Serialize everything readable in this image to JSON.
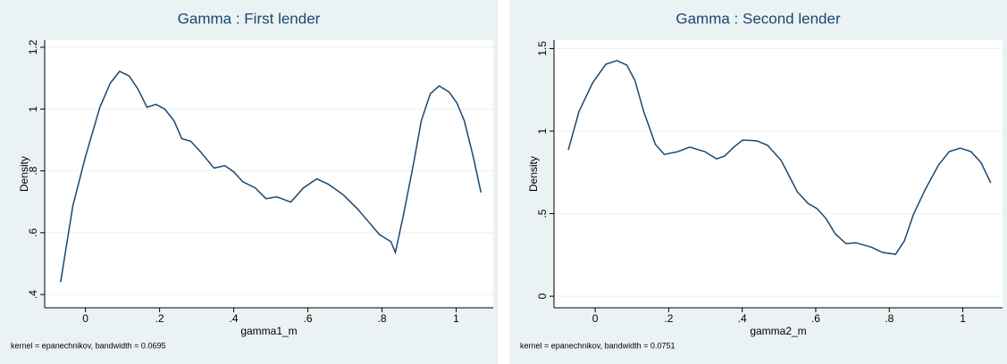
{
  "chart_data": [
    {
      "type": "line",
      "title": "Gamma : First lender",
      "x_label": "gamma1_m",
      "y_label": "Density",
      "note": "kernel = epanechnikov, bandwidth = 0.0695",
      "color": "#1a476f",
      "grid": true,
      "xlim": [
        -0.11,
        1.1
      ],
      "ylim": [
        0.357,
        1.223
      ],
      "xticks": [
        0,
        {
          "value": 0.2,
          "label": ".2"
        },
        {
          "value": 0.4,
          "label": ".4"
        },
        {
          "value": 0.6,
          "label": ".6"
        },
        {
          "value": 0.8,
          "label": ".8"
        },
        1
      ],
      "yticks": [
        {
          "value": 0.4,
          "label": ".4"
        },
        {
          "value": 0.6,
          "label": ".6"
        },
        {
          "value": 0.8,
          "label": ".8"
        },
        1,
        1.2
      ],
      "x": [
        -0.067,
        -0.034,
        0,
        0.039,
        0.067,
        0.092,
        0.118,
        0.142,
        0.166,
        0.19,
        0.214,
        0.239,
        0.26,
        0.284,
        0.311,
        0.347,
        0.376,
        0.4,
        0.424,
        0.458,
        0.487,
        0.516,
        0.554,
        0.588,
        0.624,
        0.655,
        0.696,
        0.733,
        0.764,
        0.793,
        0.824,
        0.836,
        0.858,
        0.884,
        0.906,
        0.93,
        0.954,
        0.981,
        1.002,
        1.022,
        1.046,
        1.067
      ],
      "values": [
        0.44,
        0.687,
        0.846,
        1.006,
        1.084,
        1.122,
        1.107,
        1.064,
        1.006,
        1.015,
        1.0,
        0.962,
        0.904,
        0.896,
        0.861,
        0.809,
        0.817,
        0.797,
        0.765,
        0.745,
        0.71,
        0.716,
        0.699,
        0.745,
        0.774,
        0.757,
        0.722,
        0.678,
        0.635,
        0.594,
        0.571,
        0.536,
        0.658,
        0.817,
        0.962,
        1.049,
        1.075,
        1.055,
        1.02,
        0.962,
        0.846,
        0.73
      ]
    },
    {
      "type": "line",
      "title": "Gamma : Second lender",
      "x_label": "gamma2_m",
      "y_label": "Density",
      "note": "kernel = epanechnikov, bandwidth = 0.0751",
      "color": "#1a476f",
      "grid": true,
      "xlim": [
        -0.112,
        1.108
      ],
      "ylim": [
        -0.07,
        1.551
      ],
      "xticks": [
        0,
        {
          "value": 0.2,
          "label": ".2"
        },
        {
          "value": 0.4,
          "label": ".4"
        },
        {
          "value": 0.6,
          "label": ".6"
        },
        {
          "value": 0.8,
          "label": ".8"
        },
        1
      ],
      "yticks": [
        0,
        {
          "value": 0.5,
          "label": ".5"
        },
        1,
        1.5
      ],
      "x": [
        -0.073,
        -0.044,
        -0.007,
        0.029,
        0.059,
        0.086,
        0.108,
        0.132,
        0.164,
        0.188,
        0.225,
        0.257,
        0.298,
        0.33,
        0.352,
        0.377,
        0.401,
        0.44,
        0.469,
        0.506,
        0.55,
        0.579,
        0.604,
        0.628,
        0.653,
        0.682,
        0.709,
        0.751,
        0.782,
        0.817,
        0.841,
        0.866,
        0.897,
        0.934,
        0.963,
        0.993,
        1.022,
        1.049,
        1.076
      ],
      "values": [
        0.886,
        1.119,
        1.292,
        1.405,
        1.427,
        1.4,
        1.308,
        1.119,
        0.919,
        0.859,
        0.876,
        0.903,
        0.876,
        0.832,
        0.849,
        0.903,
        0.946,
        0.941,
        0.914,
        0.822,
        0.632,
        0.562,
        0.53,
        0.47,
        0.378,
        0.319,
        0.324,
        0.297,
        0.265,
        0.254,
        0.335,
        0.497,
        0.643,
        0.795,
        0.876,
        0.897,
        0.876,
        0.811,
        0.686
      ]
    }
  ]
}
